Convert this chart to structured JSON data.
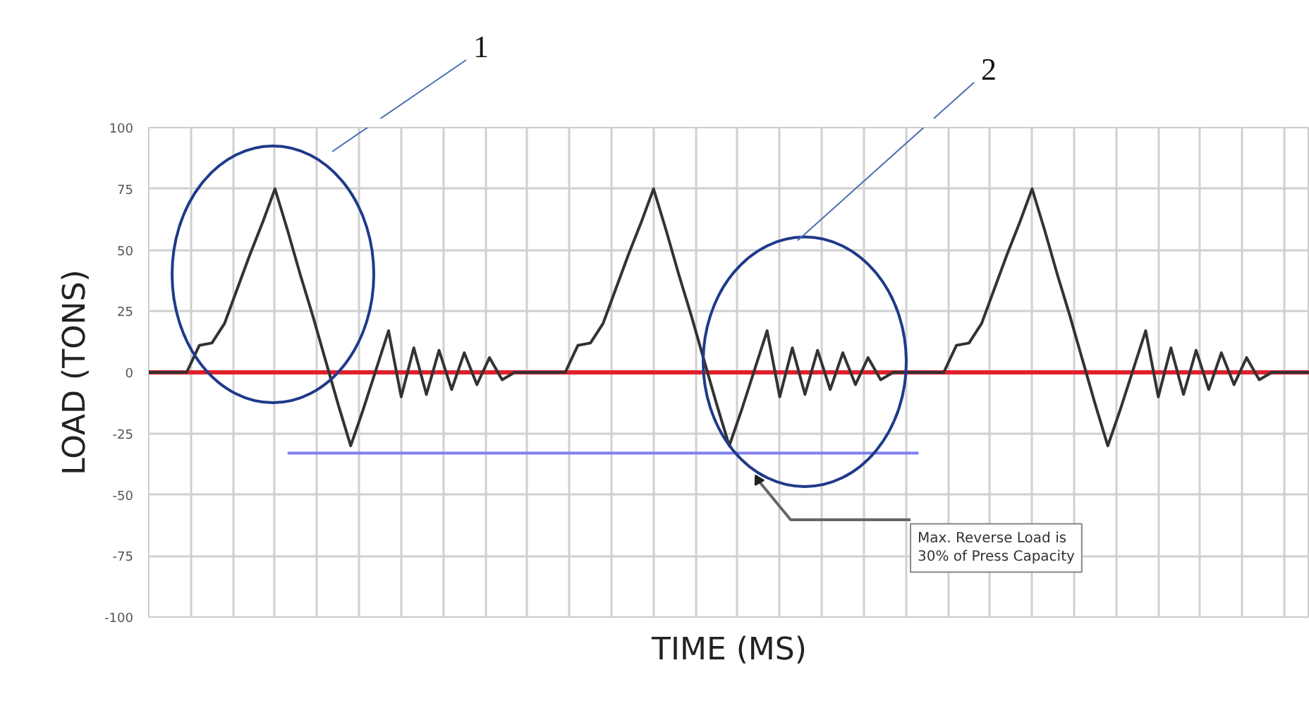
{
  "chart_data": {
    "type": "line",
    "xlabel": "TIME (MS)",
    "ylabel": "LOAD (TONS)",
    "categories": [
      null,
      null,
      null,
      null,
      null,
      null,
      null,
      null,
      null,
      null,
      null,
      null,
      null,
      null,
      null,
      null,
      null,
      null,
      null,
      null,
      null,
      null,
      null,
      null,
      null,
      null,
      null,
      null,
      null,
      null,
      null,
      null,
      null,
      null,
      null,
      null,
      null,
      null,
      null,
      null,
      null,
      null,
      null,
      null,
      null,
      null,
      null,
      null,
      null,
      null,
      null,
      null,
      null,
      null,
      null,
      null,
      null,
      null,
      null,
      null,
      null,
      null,
      null,
      null,
      null,
      null,
      null,
      null,
      null,
      null,
      null,
      null,
      null,
      null,
      null,
      null,
      null,
      null,
      null,
      null,
      null,
      null,
      null,
      null,
      null,
      null,
      null,
      null,
      null,
      null,
      null,
      null,
      null
    ],
    "ylim": [
      -100,
      100
    ],
    "yticks": [
      100,
      75,
      50,
      25,
      0,
      -25,
      -50,
      -75,
      -100
    ],
    "grid": true,
    "marker": "none",
    "line_style": "solid",
    "series": [
      {
        "color": "#333333",
        "values": [
          0,
          0,
          0,
          0,
          11,
          12,
          20,
          34,
          48,
          61,
          75,
          58,
          40,
          23,
          5,
          -13,
          -30,
          -15,
          1,
          17,
          -10,
          10,
          -9,
          9,
          -7,
          8,
          -5,
          6,
          -3,
          0,
          0,
          0,
          0,
          0,
          11,
          12,
          20,
          34,
          48,
          61,
          75,
          58,
          40,
          23,
          5,
          -13,
          -30,
          -15,
          1,
          17,
          -10,
          10,
          -9,
          9,
          -7,
          8,
          -5,
          6,
          -3,
          0,
          0,
          0,
          0,
          0,
          11,
          12,
          20,
          34,
          48,
          61,
          75,
          58,
          40,
          23,
          5,
          -13,
          -30,
          -15,
          1,
          17,
          -10,
          10,
          -9,
          9,
          -7,
          8,
          -5,
          6,
          -3,
          0,
          0,
          0,
          0
        ]
      },
      {
        "color": "#8080ee",
        "values": [
          null,
          null,
          null,
          null,
          null,
          null,
          null,
          null,
          null,
          null,
          null,
          -33,
          -33,
          -33,
          -33,
          -33,
          -33,
          -33,
          -33,
          -33,
          -33,
          -33,
          -33,
          -33,
          -33,
          -33,
          -33,
          -33,
          -33,
          -33,
          -33,
          -33,
          -33,
          -33,
          -33,
          -33,
          -33,
          -33,
          -33,
          -33,
          -33,
          -33,
          -33,
          -33,
          -33,
          -33,
          -33,
          -33,
          -33,
          -33,
          -33,
          -33,
          -33,
          -33,
          -33,
          -33,
          -33,
          -33,
          -33,
          -33,
          -33,
          -33,
          null,
          null,
          null,
          null,
          null,
          null,
          null,
          null,
          null,
          null,
          null,
          null,
          null,
          null,
          null,
          null,
          null,
          null,
          null,
          null,
          null,
          null,
          null,
          null,
          null,
          null,
          null,
          null,
          null,
          null,
          null
        ]
      }
    ],
    "ref_lines": [
      {
        "axis": "y",
        "value": 0,
        "color": "#e0202a",
        "line_style": "solid"
      }
    ],
    "annotations": [
      "1",
      "2",
      "Max. Reverse Load is\n30% of Press Capacity"
    ]
  }
}
